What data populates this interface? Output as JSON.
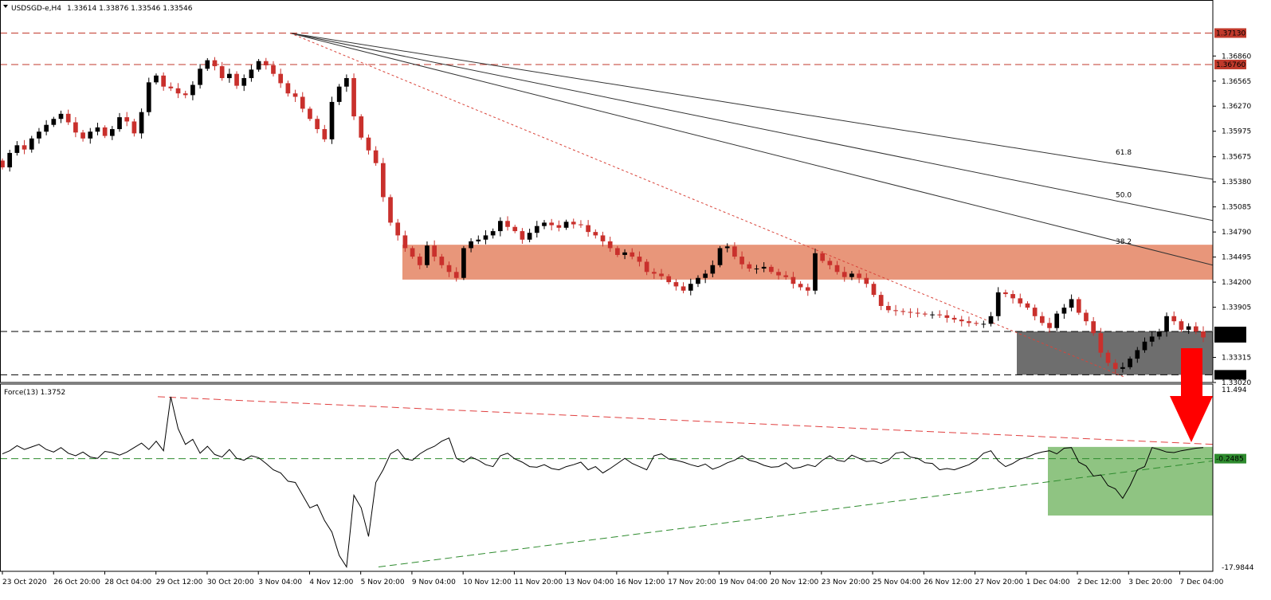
{
  "header": {
    "symbol": "USDSGD-e,H4",
    "ohlc": "1.33614 1.33876 1.33546 1.33546",
    "indicator": "Force(13) 1.3752"
  },
  "colors": {
    "bull": "#000000",
    "bear": "#c9302c",
    "resistance_zone": "#e8967a",
    "support_zone": "#6e6e6e",
    "force_zone": "#8fc482",
    "hline_red": "#c0392b",
    "arrow": "#ff0000",
    "force_line": "#000000",
    "price_tag_bg": "#c0392b"
  },
  "chart_data": [
    {
      "type": "candlestick",
      "panel": "price",
      "ylim": [
        1.3302,
        1.3735
      ],
      "y_ticks": [
        "1.36860",
        "1.36565",
        "1.36270",
        "1.35975",
        "1.35675",
        "1.35380",
        "1.35085",
        "1.34790",
        "1.34495",
        "1.34200",
        "1.33905",
        "1.33315",
        "1.33020"
      ],
      "x_ticks": [
        "23 Oct 2020",
        "26 Oct 20:00",
        "28 Oct 04:00",
        "29 Oct 12:00",
        "30 Oct 20:00",
        "3 Nov 04:00",
        "4 Nov 12:00",
        "5 Nov 20:00",
        "9 Nov 04:00",
        "10 Nov 12:00",
        "11 Nov 20:00",
        "13 Nov 04:00",
        "16 Nov 12:00",
        "17 Nov 20:00",
        "19 Nov 04:00",
        "20 Nov 12:00",
        "23 Nov 20:00",
        "25 Nov 04:00",
        "26 Nov 12:00",
        "27 Nov 20:00",
        "1 Dec 04:00",
        "2 Dec 12:00",
        "3 Dec 20:00",
        "7 Dec 04:00"
      ],
      "close_series": [
        1.3555,
        1.3572,
        1.3581,
        1.3576,
        1.3589,
        1.3597,
        1.3605,
        1.3612,
        1.3618,
        1.3608,
        1.3596,
        1.3589,
        1.3597,
        1.3602,
        1.3592,
        1.36,
        1.3614,
        1.3609,
        1.3595,
        1.362,
        1.3655,
        1.3663,
        1.365,
        1.3648,
        1.3642,
        1.364,
        1.3652,
        1.3671,
        1.3681,
        1.3674,
        1.366,
        1.3665,
        1.3651,
        1.366,
        1.367,
        1.368,
        1.3675,
        1.3665,
        1.3654,
        1.3642,
        1.3638,
        1.3624,
        1.3612,
        1.36,
        1.3588,
        1.3632,
        1.365,
        1.366,
        1.3615,
        1.359,
        1.3575,
        1.356,
        1.352,
        1.349,
        1.3475,
        1.346,
        1.345,
        1.344,
        1.3463,
        1.345,
        1.344,
        1.3432,
        1.3425,
        1.346,
        1.3468,
        1.347,
        1.3475,
        1.348,
        1.3492,
        1.3485,
        1.348,
        1.347,
        1.3478,
        1.3486,
        1.349,
        1.3487,
        1.3484,
        1.3491,
        1.3488,
        1.3487,
        1.3479,
        1.3475,
        1.3468,
        1.346,
        1.3452,
        1.3455,
        1.345,
        1.3444,
        1.3432,
        1.343,
        1.3427,
        1.342,
        1.3415,
        1.341,
        1.3418,
        1.3425,
        1.343,
        1.344,
        1.346,
        1.3462,
        1.345,
        1.3441,
        1.3436,
        1.3436,
        1.3438,
        1.3432,
        1.3428,
        1.3426,
        1.3418,
        1.3414,
        1.341,
        1.3454,
        1.3445,
        1.344,
        1.3432,
        1.3426,
        1.343,
        1.3425,
        1.3418,
        1.3405,
        1.3392,
        1.3387,
        1.3386,
        1.3385,
        1.3384,
        1.3383,
        1.3382,
        1.3382,
        1.3381,
        1.3378,
        1.3376,
        1.3374,
        1.3372,
        1.3371,
        1.3371,
        1.338,
        1.3408,
        1.3406,
        1.3401,
        1.3395,
        1.339,
        1.338,
        1.3372,
        1.3366,
        1.3383,
        1.339,
        1.34,
        1.3384,
        1.3374,
        1.336,
        1.3337,
        1.3325,
        1.3318,
        1.332,
        1.333,
        1.334,
        1.335,
        1.3356,
        1.3362,
        1.338,
        1.3374,
        1.3364,
        1.3368,
        1.3362,
        1.3355
      ],
      "horizontal_levels": [
        "1.37130",
        "1.36760",
        "1.33620",
        "1.33546",
        "1.33110"
      ],
      "fib_labels": [
        "61.8",
        "50.0",
        "38.2"
      ],
      "zones": [
        {
          "name": "resistance-zone",
          "from": 1.3423,
          "to": 1.3464
        },
        {
          "name": "support-zone",
          "from": 1.3311,
          "to": 1.3362
        }
      ]
    },
    {
      "type": "line",
      "panel": "force",
      "name": "Force(13)",
      "ylim": [
        -17.9844,
        11.494
      ],
      "y_ticks": [
        "11.494",
        "-17.9844"
      ],
      "level": "-0.2485",
      "values": [
        0.5,
        1.0,
        1.8,
        1.2,
        1.6,
        2.0,
        1.2,
        0.8,
        1.5,
        0.6,
        0.2,
        0.8,
        0.0,
        -0.2,
        0.9,
        0.7,
        0.3,
        0.8,
        1.5,
        2.2,
        1.2,
        2.5,
        1.0,
        9.5,
        4.5,
        2.0,
        2.8,
        0.6,
        1.7,
        0.4,
        0.0,
        1.2,
        -0.2,
        -0.5,
        0.2,
        -0.1,
        -1.0,
        -2.0,
        -2.5,
        -3.8,
        -4.0,
        -6.0,
        -8.0,
        -7.5,
        -10.0,
        -11.8,
        -15.5,
        -17.3,
        -6.0,
        -8.0,
        -12.5,
        -4.0,
        -2.0,
        0.5,
        1.2,
        -0.3,
        -0.5,
        0.5,
        1.2,
        1.7,
        2.5,
        3.0,
        -0.2,
        -0.8,
        0.0,
        -0.5,
        -1.2,
        -1.5,
        0.2,
        0.6,
        -0.3,
        -0.8,
        -1.5,
        -1.6,
        -1.2,
        -1.8,
        -2.0,
        -1.5,
        -1.2,
        -0.8,
        -2.0,
        -1.5,
        -2.5,
        -1.8,
        -1.0,
        -0.2,
        -1.0,
        -1.5,
        -2.0,
        0.2,
        0.5,
        -0.3,
        -0.5,
        -0.8,
        -1.2,
        -1.5,
        -1.1,
        -1.9,
        -1.5,
        -0.9,
        -0.5,
        0.2,
        -0.5,
        -0.8,
        -1.3,
        -1.6,
        -1.5,
        -0.9,
        -1.8,
        -1.6,
        -1.2,
        -1.5,
        -0.5,
        0.2,
        -0.5,
        -0.7,
        0.3,
        -0.2,
        -0.7,
        -0.6,
        -1.0,
        -0.5,
        0.6,
        0.8,
        0.0,
        -0.2,
        -0.9,
        -1.0,
        -2.0,
        -1.8,
        -2.0,
        -1.6,
        -1.2,
        -0.5,
        0.6,
        1.0,
        -0.6,
        -1.5,
        -1.0,
        -0.3,
        0.0,
        0.5,
        0.8,
        1.0,
        0.5,
        1.4,
        1.5,
        -0.8,
        -1.4,
        -3.0,
        -2.8,
        -4.5,
        -5.0,
        -6.5,
        -4.5,
        -2.0,
        -1.5,
        1.5,
        1.2,
        0.8,
        0.7,
        1.0,
        1.2,
        1.4,
        1.5
      ]
    }
  ]
}
